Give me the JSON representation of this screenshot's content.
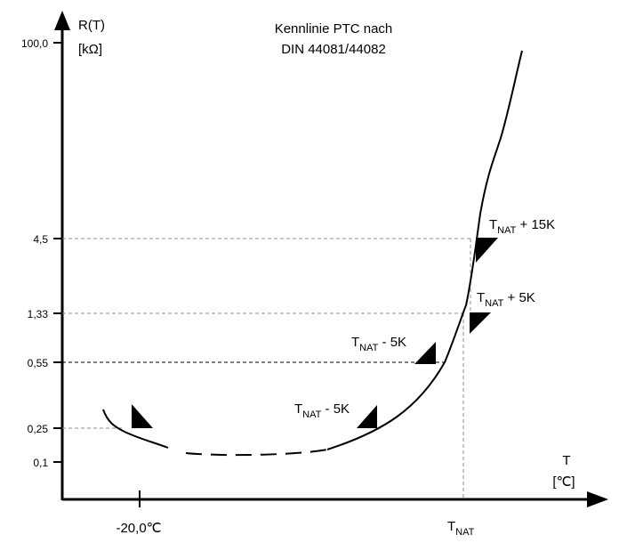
{
  "title": {
    "line1": "Kennlinie PTC nach",
    "line2": "DIN 44081/44082"
  },
  "y_axis": {
    "name": "R(T)",
    "unit": "[kΩ]",
    "ticks": [
      "100,0",
      "4,5",
      "1,33",
      "0,55",
      "0,25",
      "0,1"
    ]
  },
  "x_axis": {
    "name": "T",
    "unit": "[℃]",
    "tick_left": "-20,0℃",
    "tick_nat": "T",
    "tick_nat_sub": "NAT"
  },
  "annotations": {
    "plus15": {
      "t": "T",
      "sub": "NAT",
      "rest": " + 15K"
    },
    "plus5": {
      "t": "T",
      "sub": "NAT",
      "rest": " + 5K"
    },
    "minus5_upper": {
      "t": "T",
      "sub": "NAT",
      "rest": " - 5K"
    },
    "minus5_lower": {
      "t": "T",
      "sub": "NAT",
      "rest": " - 5K"
    }
  },
  "colors": {
    "axis": "#000000",
    "curve": "#000000",
    "guide": "#8c8c8c"
  }
}
